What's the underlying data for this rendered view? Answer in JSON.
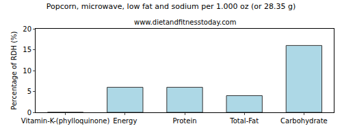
{
  "chart_data": {
    "type": "bar",
    "title": "Popcorn, microwave, low fat and sodium per 1.000 oz (or 28.35 g)",
    "subtitle": "www.dietandfitnesstoday.com",
    "y_label": "Percentage of RDH (%)",
    "categories": [
      "Vitamin-K-(phylloquinone)",
      "Energy",
      "Protein",
      "Total-Fat",
      "Carbohydrate"
    ],
    "values": [
      0,
      6,
      6,
      4,
      16
    ],
    "color": "#add8e6",
    "ylim": [
      0,
      20
    ],
    "yticks": [
      0,
      5,
      10,
      15,
      20
    ],
    "grid": false
  }
}
